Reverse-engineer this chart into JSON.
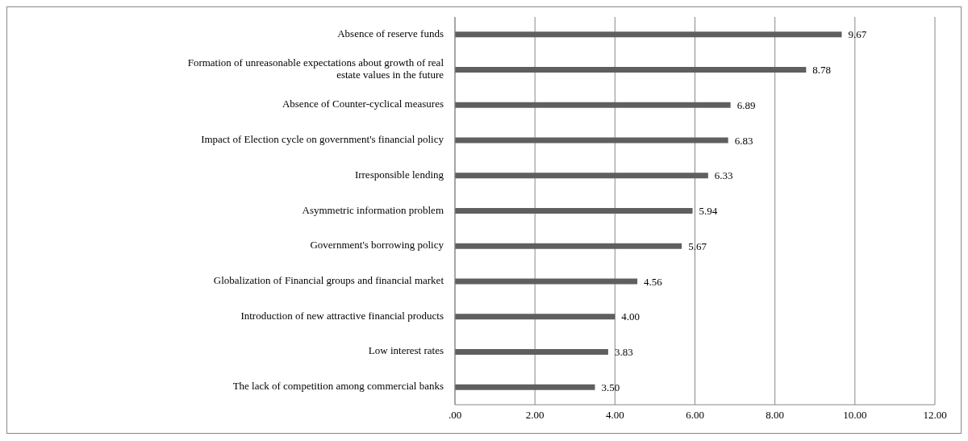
{
  "chart_data": {
    "type": "bar",
    "orientation": "horizontal",
    "categories": [
      "Absence of reserve funds",
      "Formation of unreasonable expectations about growth of real estate values in the future",
      "Absence of Counter-cyclical measures",
      "Impact of Election cycle on government's financial policy",
      "Irresponsible lending",
      "Asymmetric information problem",
      "Government's borrowing policy",
      "Globalization of Financial groups and financial market",
      "Introduction of new attractive financial products",
      "Low interest rates",
      "The lack of competition among commercial banks"
    ],
    "values": [
      9.67,
      8.78,
      6.89,
      6.83,
      6.33,
      5.94,
      5.67,
      4.56,
      4.0,
      3.83,
      3.5
    ],
    "value_labels": [
      "9.67",
      "8.78",
      "6.89",
      "6.83",
      "6.33",
      "5.94",
      "5.67",
      "4.56",
      "4.00",
      "3.83",
      "3.50"
    ],
    "color": "#5f5f5f",
    "xlim": [
      0,
      12
    ],
    "xticks": [
      {
        "value": 0,
        "label": ".00"
      },
      {
        "value": 2,
        "label": "2.00"
      },
      {
        "value": 4,
        "label": "4.00"
      },
      {
        "value": 6,
        "label": "6.00"
      },
      {
        "value": 8,
        "label": "8.00"
      },
      {
        "value": 10,
        "label": "10.00"
      },
      {
        "value": 12,
        "label": "12.00"
      }
    ],
    "grid": "x"
  }
}
